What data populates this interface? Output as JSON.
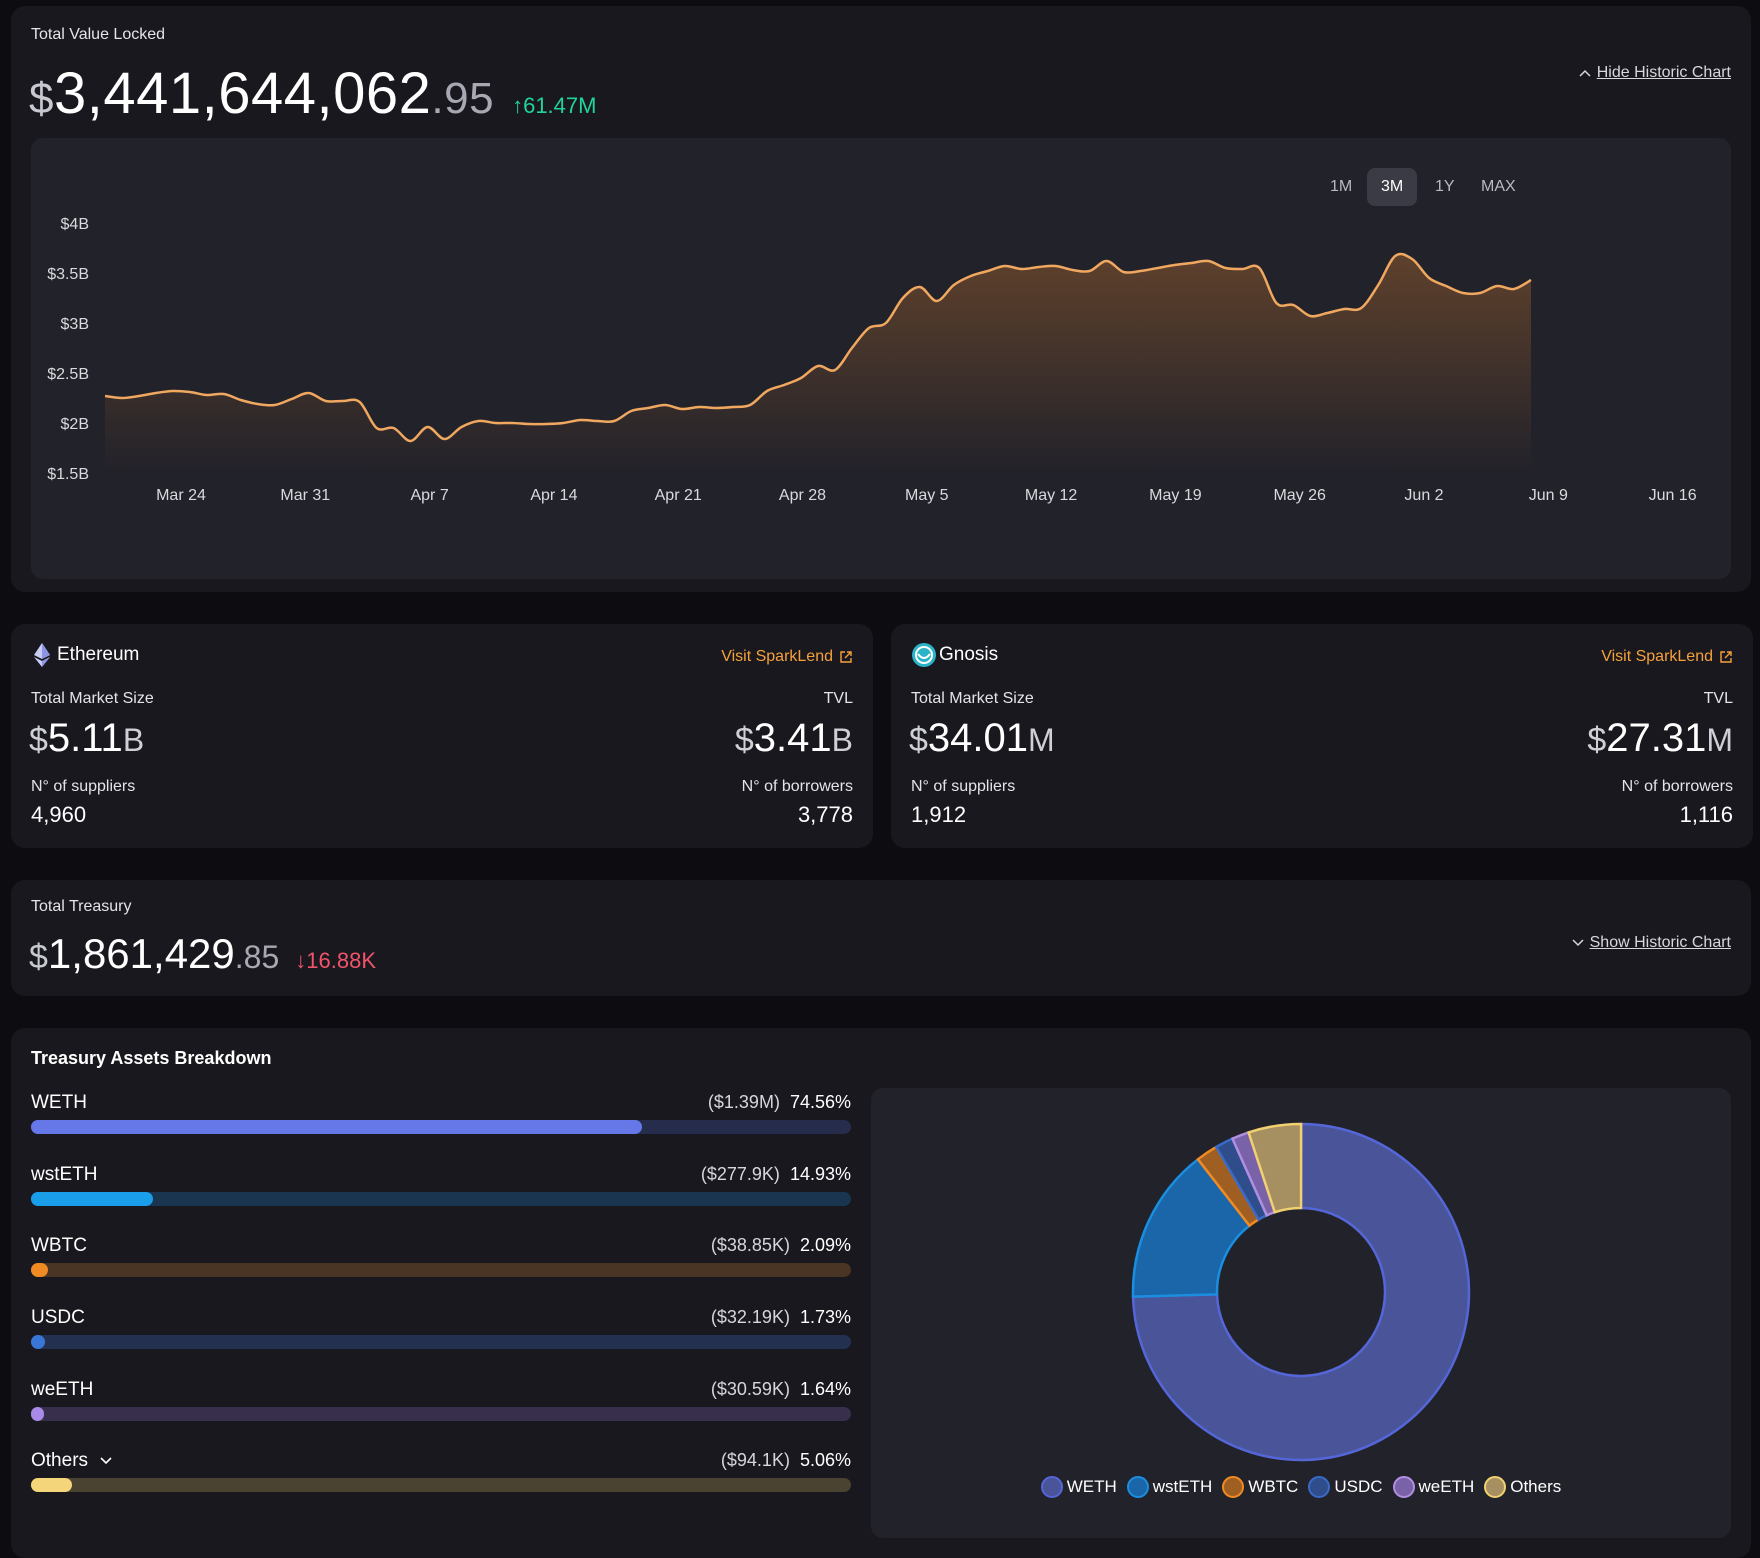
{
  "tvl": {
    "title": "Total Value Locked",
    "currency_symbol": "$",
    "integer": "3,441,644,062",
    "cents": ".95",
    "change": "↑61.47M",
    "toggle_label": "Hide Historic Chart",
    "ranges": [
      "1M",
      "3M",
      "1Y",
      "MAX"
    ],
    "active_range": "3M"
  },
  "chart_data": {
    "type": "area",
    "title": "",
    "xlabel": "",
    "ylabel": "",
    "y_ticks": [
      "$4B",
      "$3.5B",
      "$3B",
      "$2.5B",
      "$2B",
      "$1.5B"
    ],
    "x_ticks": [
      "Mar 24",
      "Mar 31",
      "Apr 7",
      "Apr 14",
      "Apr 21",
      "Apr 28",
      "May 5",
      "May 12",
      "May 19",
      "May 26",
      "Jun 2",
      "Jun 9",
      "Jun 16"
    ],
    "ylim": [
      1.5,
      4.0
    ],
    "y_unit": "billions USD",
    "line_color": "#f0a860",
    "series": [
      {
        "values": [
          2.27,
          2.25,
          2.27,
          2.3,
          2.32,
          2.31,
          2.28,
          2.29,
          2.23,
          2.19,
          2.18,
          2.24,
          2.3,
          2.22,
          2.22,
          2.21,
          1.95,
          1.95,
          1.82,
          1.96,
          1.84,
          1.96,
          2.02,
          2.0,
          2.0,
          1.99,
          1.99,
          2.0,
          2.03,
          2.02,
          2.02,
          2.12,
          2.15,
          2.18,
          2.14,
          2.16,
          2.15,
          2.16,
          2.18,
          2.32,
          2.38,
          2.45,
          2.57,
          2.53,
          2.75,
          2.95,
          3.0,
          3.25,
          3.36,
          3.22,
          3.38,
          3.47,
          3.52,
          3.57,
          3.54,
          3.56,
          3.57,
          3.53,
          3.52,
          3.62,
          3.51,
          3.52,
          3.55,
          3.58,
          3.6,
          3.62,
          3.55,
          3.54,
          3.55,
          3.2,
          3.18,
          3.07,
          3.1,
          3.14,
          3.15,
          3.38,
          3.67,
          3.64,
          3.45,
          3.37,
          3.3,
          3.3,
          3.37,
          3.34,
          3.43
        ]
      }
    ]
  },
  "networks": [
    {
      "name": "Ethereum",
      "visit_label": "Visit SparkLend",
      "market_label": "Total Market Size",
      "market_value": "5.11",
      "market_unit": "B",
      "tvl_label": "TVL",
      "tvl_value": "3.41",
      "tvl_unit": "B",
      "suppliers_label": "N° of suppliers",
      "suppliers": "4,960",
      "borrowers_label": "N° of borrowers",
      "borrowers": "3,778"
    },
    {
      "name": "Gnosis",
      "visit_label": "Visit SparkLend",
      "market_label": "Total Market Size",
      "market_value": "34.01",
      "market_unit": "M",
      "tvl_label": "TVL",
      "tvl_value": "27.31",
      "tvl_unit": "M",
      "suppliers_label": "N° of suppliers",
      "suppliers": "1,912",
      "borrowers_label": "N° of borrowers",
      "borrowers": "1,116"
    }
  ],
  "treasury": {
    "title": "Total Treasury",
    "currency_symbol": "$",
    "integer": "1,861,429",
    "cents": ".85",
    "change": "↓16.88K",
    "toggle_label": "Show Historic Chart"
  },
  "breakdown": {
    "title": "Treasury Assets Breakdown",
    "assets": [
      {
        "name": "WETH",
        "amount": "($1.39M)",
        "percent": "74.56%",
        "fraction": 0.7456,
        "color": "#6677e8",
        "track": "#262c4c",
        "ring": "#5566d8",
        "fill": "#4a5499"
      },
      {
        "name": "wstETH",
        "amount": "($277.9K)",
        "percent": "14.93%",
        "fraction": 0.1493,
        "color": "#1a9eea",
        "track": "#1a3550",
        "ring": "#1a8ee0",
        "fill": "#1a66a8"
      },
      {
        "name": "WBTC",
        "amount": "($38.85K)",
        "percent": "2.09%",
        "fraction": 0.0209,
        "color": "#f08a22",
        "track": "#4a3424",
        "ring": "#f08a22",
        "fill": "#a05f22"
      },
      {
        "name": "USDC",
        "amount": "($32.19K)",
        "percent": "1.73%",
        "fraction": 0.0173,
        "color": "#3a76d8",
        "track": "#23304f",
        "ring": "#3a6ac8",
        "fill": "#2e4d8a"
      },
      {
        "name": "weETH",
        "amount": "($30.59K)",
        "percent": "1.64%",
        "fraction": 0.0164,
        "color": "#a98ae8",
        "track": "#372f4c",
        "ring": "#b08ee0",
        "fill": "#7a62a8"
      },
      {
        "name": "Others",
        "amount": "($94.1K)",
        "percent": "5.06%",
        "fraction": 0.0506,
        "color": "#f5d57a",
        "track": "#4b4331",
        "ring": "#f0d070",
        "fill": "#a69062"
      }
    ]
  }
}
